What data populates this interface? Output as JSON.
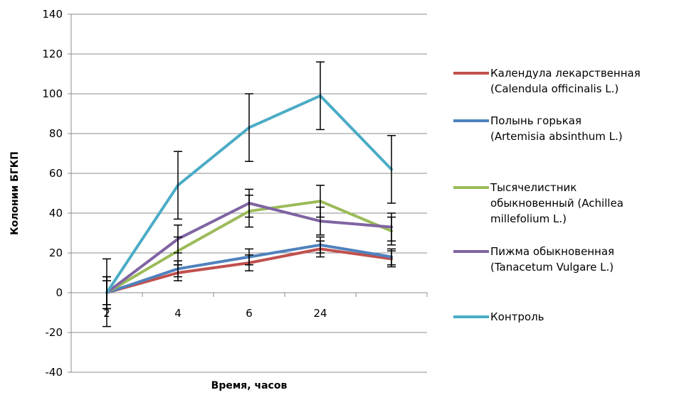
{
  "chart_data": {
    "type": "line",
    "xlabel": "Время, часов",
    "ylabel": "Колонии БГКП",
    "categories": [
      "2",
      "4",
      "6",
      "24",
      ""
    ],
    "ylim": [
      -40,
      140
    ],
    "yticks": [
      -40,
      -20,
      0,
      20,
      40,
      60,
      80,
      100,
      120,
      140
    ],
    "grid": true,
    "legend_position": "right",
    "series": [
      {
        "name": "Календула лекарственная (Calendula officinalis L.)",
        "name_lines": [
          "Календула лекарственная",
          "(Calendula officinalis L.)"
        ],
        "color": "#c0504d",
        "values": [
          0,
          10,
          15,
          22,
          17
        ],
        "errors": [
          6,
          4,
          4,
          4,
          4
        ]
      },
      {
        "name": "Полынь горькая (Artemisia absinthum L.)",
        "name_lines": [
          "Полынь горькая",
          "(Artemisia absinthum  L.)"
        ],
        "color": "#4f81bd",
        "values": [
          0,
          12,
          18,
          24,
          18
        ],
        "errors": [
          6,
          4,
          4,
          4,
          4
        ]
      },
      {
        "name": "Тысячелистник обыкновенный (Achillea millefolium L.)",
        "name_lines": [
          "Тысячелистник",
          "обыкновенный (Achillea",
          "millefolium L.)"
        ],
        "color": "#9bbb59",
        "values": [
          0,
          21,
          41,
          46,
          31
        ],
        "errors": [
          8,
          7,
          8,
          8,
          7
        ]
      },
      {
        "name": "Пижма обыкновенная (Tanacetum Vulgare L.)",
        "name_lines": [
          "Пижма обыкновенная",
          "(Tanacetum Vulgare L.)"
        ],
        "color": "#8064a2",
        "values": [
          0,
          27,
          45,
          36,
          33
        ],
        "errors": [
          8,
          7,
          7,
          7,
          7
        ]
      },
      {
        "name": "Контроль",
        "name_lines": [
          "Контроль"
        ],
        "color": "#4bacc6",
        "values": [
          0,
          54,
          83,
          99,
          62
        ],
        "errors": [
          17,
          17,
          17,
          17,
          17
        ]
      }
    ]
  }
}
